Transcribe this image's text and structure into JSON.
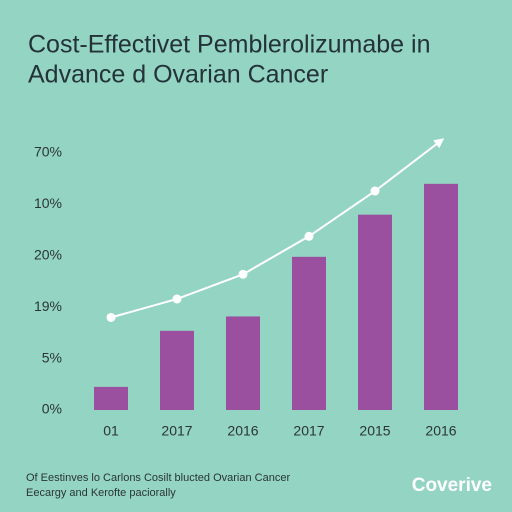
{
  "chart_data": {
    "type": "bar",
    "title": [
      "Cost-Effectivet Pemblerolizumabe in",
      "Advance d Ovarian Cancer"
    ],
    "categories": [
      "01",
      "2017",
      "2016",
      "2017",
      "2015",
      "2016"
    ],
    "values": [
      2.25,
      7.7,
      9.1,
      14.9,
      19,
      22
    ],
    "color": "#9a4f9f",
    "line": {
      "color": "#ffffff",
      "values": [
        9.0,
        10.8,
        13.2,
        16.9,
        21.3,
        26.2
      ]
    },
    "ylim": [
      0,
      25
    ],
    "y_axis_labels": [
      "0%",
      "5%",
      "19%",
      "20%",
      "10%",
      "70%"
    ],
    "footnote": [
      "Of Eestinves lo Carlons Cosilt blucted Ovarian Cancer",
      "Eecargy and Kerofte paciorally"
    ],
    "brand": "Coverive"
  }
}
